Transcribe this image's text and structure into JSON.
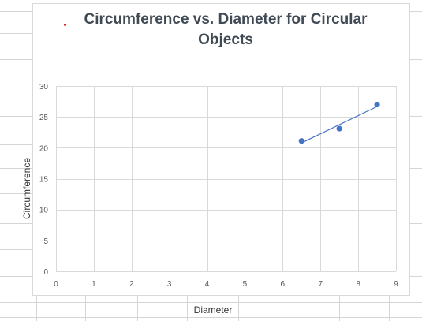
{
  "chart_data": {
    "type": "scatter",
    "title": "Circumference vs. Diameter for Circular Objects",
    "title_lines": [
      "Circumference vs. Diameter for Circular",
      "Objects"
    ],
    "xlabel": "Diameter",
    "ylabel": "Circumference",
    "xlim": [
      0,
      9
    ],
    "ylim": [
      0,
      30
    ],
    "xticks": [
      "0",
      "1",
      "2",
      "3",
      "4",
      "5",
      "6",
      "7",
      "8",
      "9"
    ],
    "yticks": [
      "0",
      "5",
      "10",
      "15",
      "20",
      "25",
      "30"
    ],
    "grid": true,
    "trendline": "linear",
    "series": [
      {
        "x": [
          6.5,
          7.5,
          8.5
        ],
        "y": [
          21.1,
          23.1,
          27.0
        ]
      }
    ],
    "colors": {
      "marker": "#4472c4",
      "trendline": "#4472c4",
      "grid": "#d9d9d9",
      "annotation_dot": "#e02020"
    }
  }
}
